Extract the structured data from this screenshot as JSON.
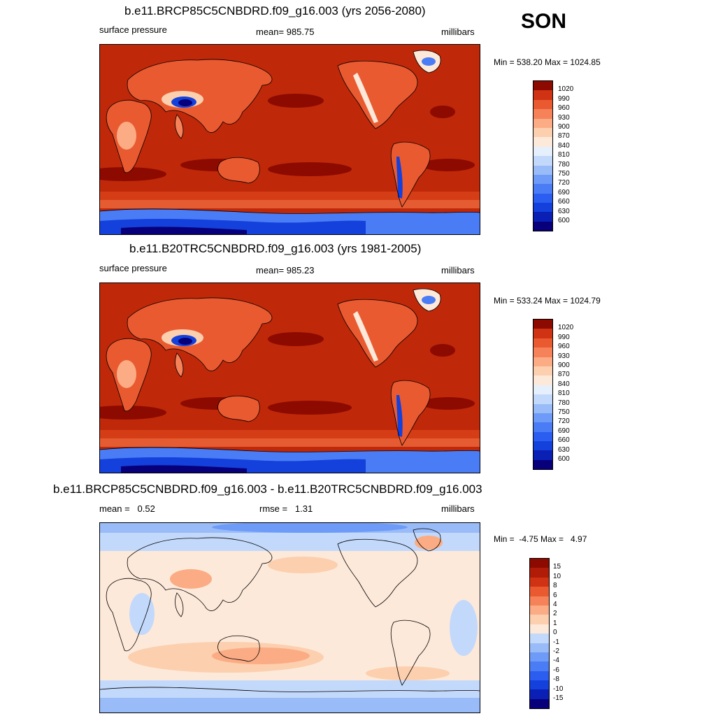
{
  "season": "SON",
  "panels": [
    {
      "title": "b.e11.BRCP85C5CNBDRD.f09_g16.003 (yrs 2056-2080)",
      "left_label": "surface pressure",
      "center_label": "mean= 985.75",
      "units": "millibars",
      "minmax": "Min = 538.20 Max = 1024.85"
    },
    {
      "title": "b.e11.B20TRC5CNBDRD.f09_g16.003 (yrs 1981-2005)",
      "left_label": "surface pressure",
      "center_label": "mean= 985.23",
      "units": "millibars",
      "minmax": "Min = 533.24 Max = 1024.79"
    },
    {
      "title": "b.e11.BRCP85C5CNBDRD.f09_g16.003 - b.e11.B20TRC5CNBDRD.f09_g16.003",
      "left_label": "mean =   0.52",
      "center_label": "rmse =   1.31",
      "units": "millibars",
      "minmax": "Min =  -4.75 Max =   4.97"
    }
  ],
  "chart_data": [
    {
      "type": "heatmap",
      "title": "b.e11.BRCP85C5CNBDRD.f09_g16.003 (yrs 2056-2080)",
      "variable": "surface pressure",
      "units": "millibars",
      "mean": 985.75,
      "min": 538.2,
      "max": 1024.85,
      "colorbar_levels": [
        600,
        630,
        660,
        690,
        720,
        750,
        780,
        810,
        840,
        870,
        900,
        930,
        960,
        990,
        1020
      ],
      "colorbar_colors": [
        "#08007a",
        "#0a1fb4",
        "#1440dc",
        "#2a5df0",
        "#4a7cf5",
        "#6e9bf7",
        "#99bcf9",
        "#c3d9fb",
        "#e6f0fd",
        "#fde9da",
        "#fccfae",
        "#fbac84",
        "#f6825a",
        "#ea5a31",
        "#cf3313",
        "#8c0a00"
      ]
    },
    {
      "type": "heatmap",
      "title": "b.e11.B20TRC5CNBDRD.f09_g16.003 (yrs 1981-2005)",
      "variable": "surface pressure",
      "units": "millibars",
      "mean": 985.23,
      "min": 533.24,
      "max": 1024.79,
      "colorbar_levels": [
        600,
        630,
        660,
        690,
        720,
        750,
        780,
        810,
        840,
        870,
        900,
        930,
        960,
        990,
        1020
      ],
      "colorbar_colors": [
        "#08007a",
        "#0a1fb4",
        "#1440dc",
        "#2a5df0",
        "#4a7cf5",
        "#6e9bf7",
        "#99bcf9",
        "#c3d9fb",
        "#e6f0fd",
        "#fde9da",
        "#fccfae",
        "#fbac84",
        "#f6825a",
        "#ea5a31",
        "#cf3313",
        "#8c0a00"
      ]
    },
    {
      "type": "heatmap",
      "title": "b.e11.BRCP85C5CNBDRD.f09_g16.003 - b.e11.B20TRC5CNBDRD.f09_g16.003",
      "units": "millibars",
      "mean": 0.52,
      "rmse": 1.31,
      "min": -4.75,
      "max": 4.97,
      "colorbar_levels": [
        -15,
        -10,
        -8,
        -6,
        -4,
        -2,
        -1,
        0,
        1,
        2,
        4,
        6,
        8,
        10,
        15
      ],
      "colorbar_colors": [
        "#08007a",
        "#0a1fb4",
        "#1440dc",
        "#2a5df0",
        "#4a7cf5",
        "#6e9bf7",
        "#99bcf9",
        "#c3d9fb",
        "#fde9da",
        "#fccfae",
        "#fbac84",
        "#f6825a",
        "#ea5a31",
        "#cf3313",
        "#b01c07",
        "#8c0a00"
      ]
    }
  ]
}
